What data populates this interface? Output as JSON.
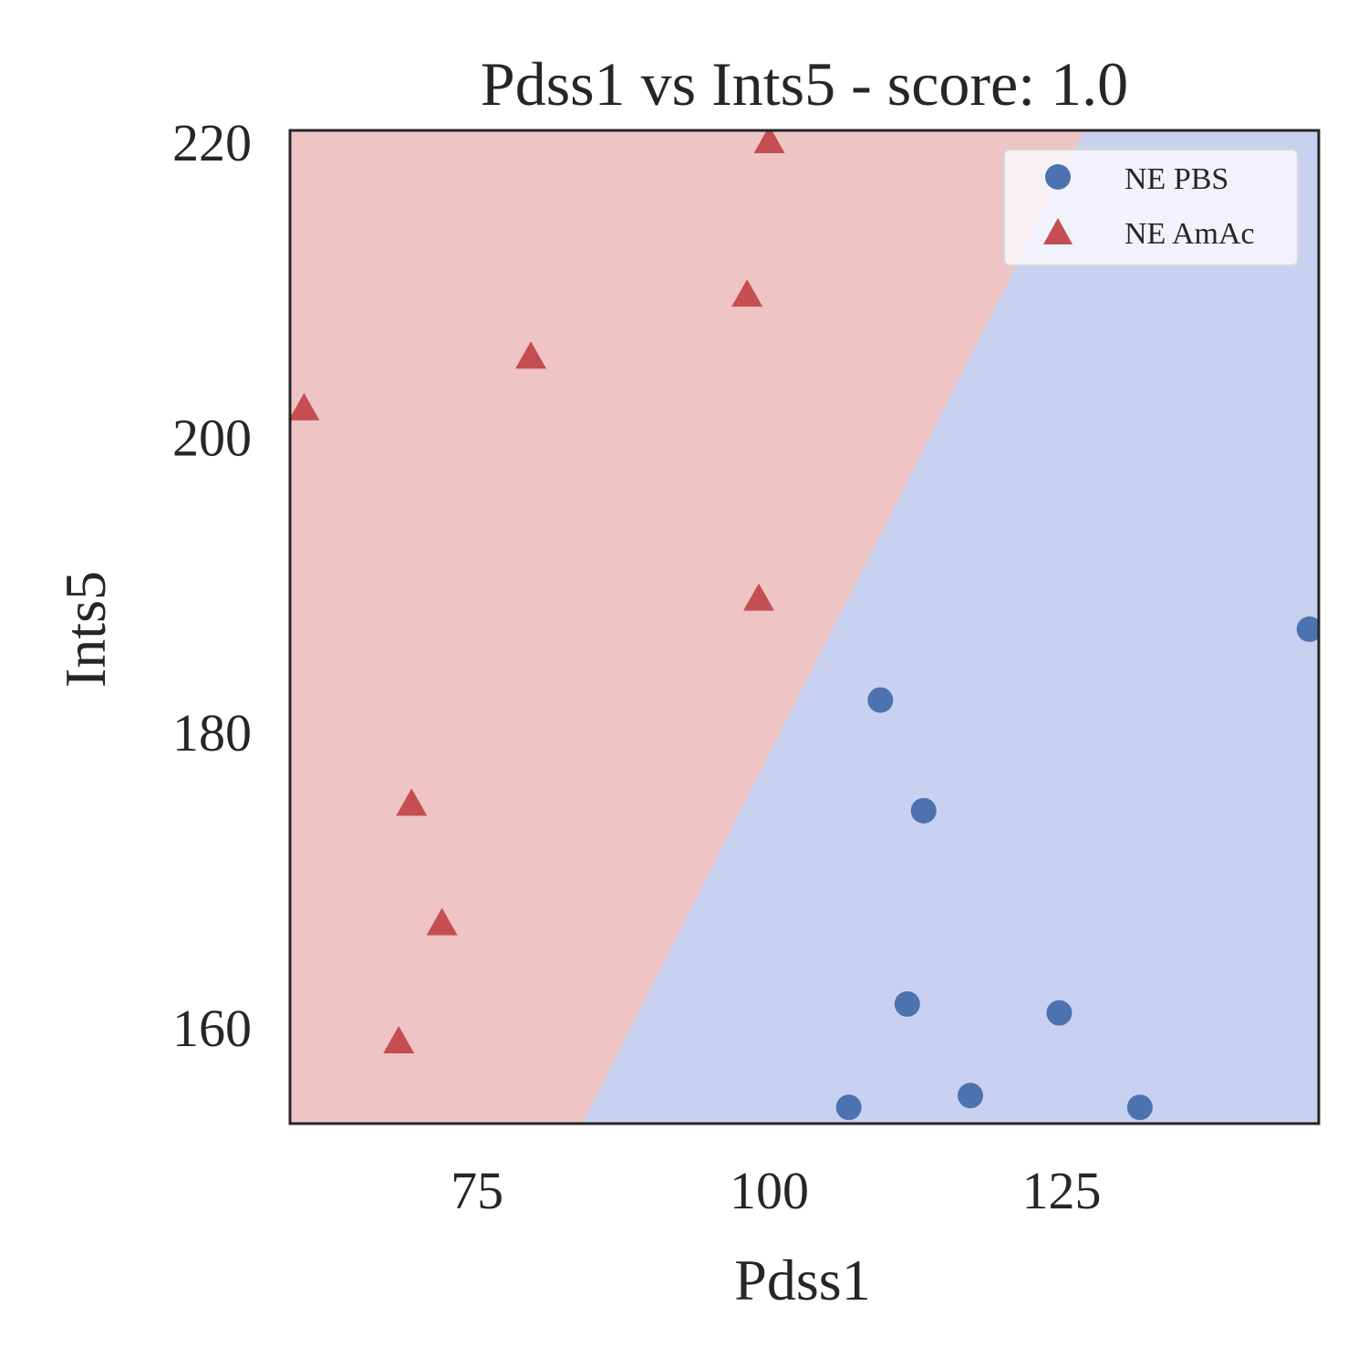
{
  "chart_data": {
    "type": "scatter",
    "title": "Pdss1 vs Ints5 - score: 1.0",
    "xlabel": "Pdss1",
    "ylabel": "Ints5",
    "xlim": [
      59,
      147
    ],
    "ylim": [
      153.5,
      220.8
    ],
    "xticks": [
      "75",
      "100",
      "125"
    ],
    "yticks": [
      "160",
      "180",
      "200",
      "220"
    ],
    "xtick_values": [
      75,
      100,
      125
    ],
    "ytick_values": [
      160,
      180,
      200,
      220
    ],
    "grid": false,
    "legend_position": "top-right",
    "decision_boundary": {
      "description_points": [
        [
          84,
          153.5
        ],
        [
          127,
          220.8
        ]
      ],
      "left_region_class": "NE AmAc",
      "right_region_class": "NE PBS",
      "left_color": "#eec4c4",
      "right_color": "#c9d1f1"
    },
    "series": [
      {
        "name": "NE PBS",
        "marker": "circle",
        "color": "#4c72b0",
        "points": [
          [
            109.5,
            182.2
          ],
          [
            113.2,
            174.7
          ],
          [
            111.8,
            161.6
          ],
          [
            124.8,
            161.0
          ],
          [
            117.2,
            155.4
          ],
          [
            106.8,
            154.6
          ],
          [
            131.7,
            154.6
          ],
          [
            146.2,
            187.0
          ]
        ]
      },
      {
        "name": "NE AmAc",
        "marker": "triangle",
        "color": "#c44e52",
        "points": [
          [
            100.0,
            220.0
          ],
          [
            98.1,
            209.6
          ],
          [
            79.6,
            205.4
          ],
          [
            60.2,
            201.9
          ],
          [
            99.1,
            189.0
          ],
          [
            69.4,
            175.1
          ],
          [
            72.0,
            167.0
          ],
          [
            68.3,
            159.0
          ]
        ]
      }
    ]
  }
}
